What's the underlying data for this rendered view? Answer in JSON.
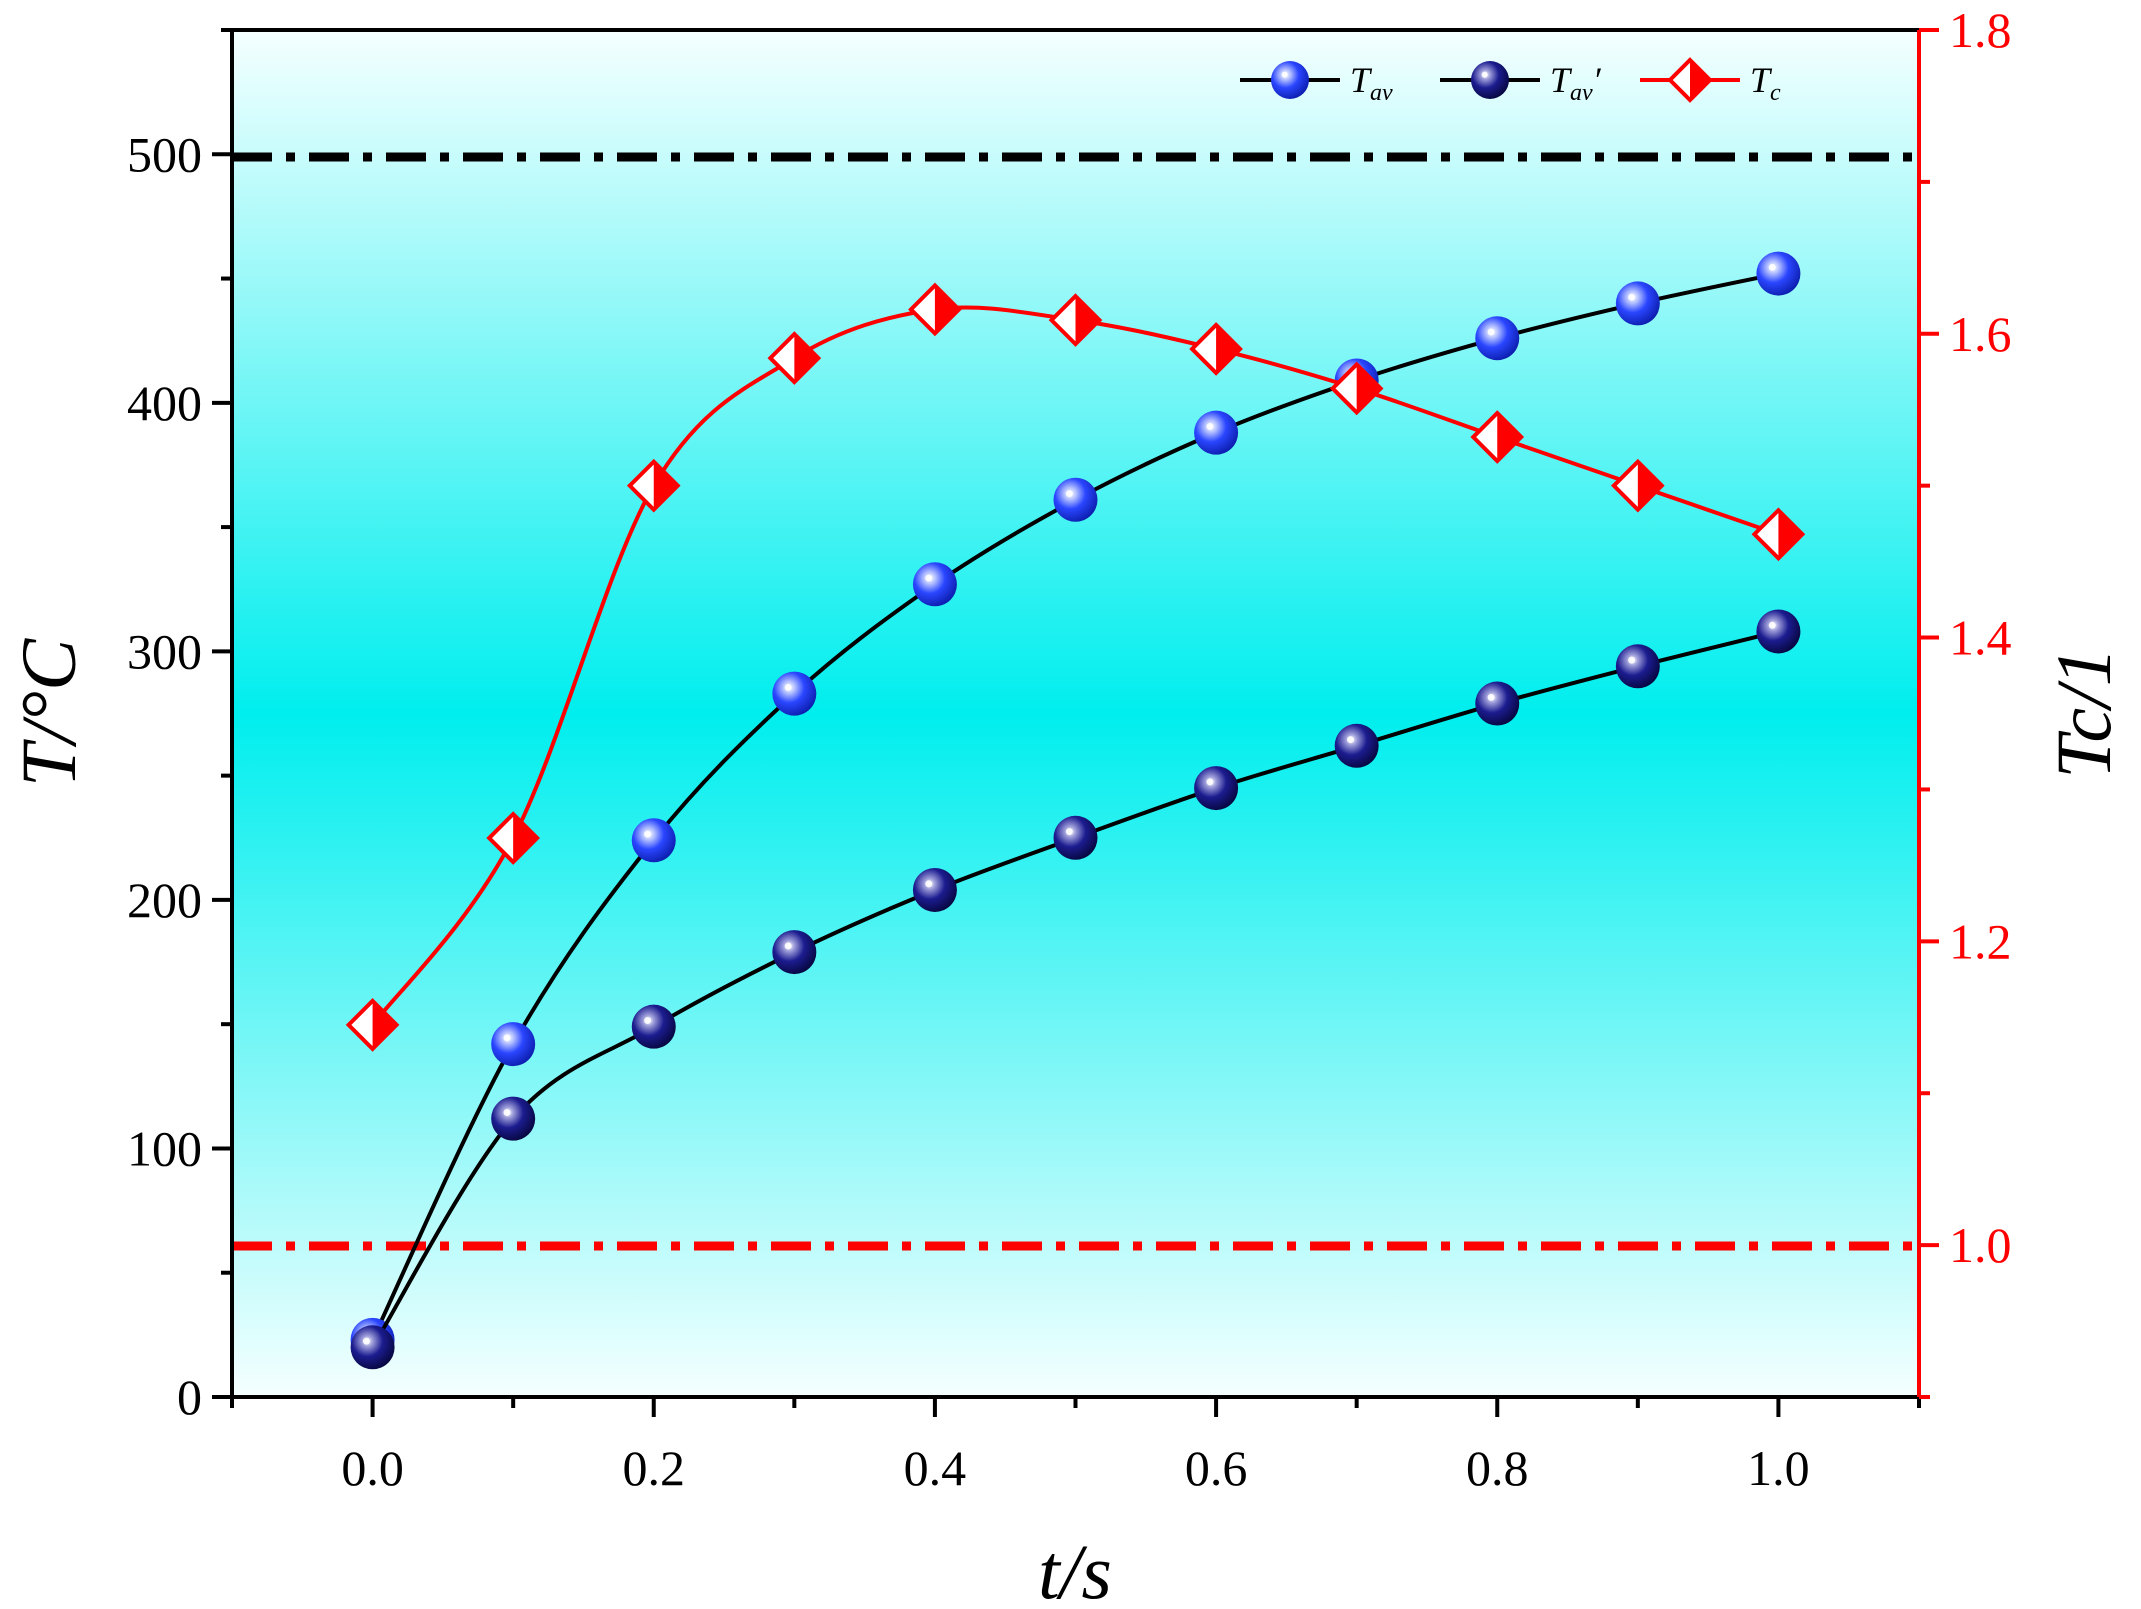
{
  "chart_data": {
    "type": "line",
    "x": [
      0.0,
      0.1,
      0.2,
      0.3,
      0.4,
      0.5,
      0.6,
      0.7,
      0.8,
      0.9,
      1.0
    ],
    "xlabel": "t/s",
    "xlim": [
      -0.1,
      1.1
    ],
    "xticks": [
      "0.0",
      "0.2",
      "0.4",
      "0.6",
      "0.8",
      "1.0"
    ],
    "ylabel_left": "T/°C",
    "ylim_left": [
      0,
      550
    ],
    "yticks_left": [
      "0",
      "100",
      "200",
      "300",
      "400",
      "500"
    ],
    "ylabel_right": "Tc/1",
    "ylim_right": [
      0.9,
      1.8
    ],
    "yticks_right": [
      "1.0",
      "1.2",
      "1.4",
      "1.6",
      "1.8"
    ],
    "series": [
      {
        "name": "Tav",
        "axis": "left",
        "color": "#000000",
        "marker": "blue-sphere",
        "marker_color": "#1f3cff",
        "values": [
          23,
          142,
          224,
          283,
          327,
          361,
          388,
          409,
          426,
          440,
          452
        ]
      },
      {
        "name": "Tav'",
        "axis": "left",
        "color": "#000000",
        "marker": "navy-sphere",
        "marker_color": "#14147a",
        "values": [
          20,
          112,
          149,
          179,
          204,
          225,
          245,
          262,
          279,
          294,
          308
        ]
      },
      {
        "name": "Tc",
        "axis": "right",
        "color": "#ff0000",
        "marker": "half-filled-diamond",
        "marker_color": "#ff0000",
        "values": [
          1.145,
          1.268,
          1.5,
          1.584,
          1.616,
          1.609,
          1.59,
          1.564,
          1.532,
          1.5,
          1.468
        ]
      }
    ],
    "reference_lines": [
      {
        "axis": "left",
        "value": 500,
        "style": "dash-dot",
        "color": "#000000"
      },
      {
        "axis": "right",
        "value": 1.0,
        "style": "dash-dot",
        "color": "#ff0000"
      }
    ],
    "legend": {
      "placement": "top-right",
      "entries": [
        {
          "base": "T",
          "sub": "av",
          "suffix": ""
        },
        {
          "base": "T",
          "sub": "av",
          "suffix": "′"
        },
        {
          "base": "T",
          "sub": "c",
          "suffix": ""
        }
      ]
    },
    "background": {
      "type": "vertical-gradient",
      "edge_color": "#f5ffff",
      "center_color": "#00eeee"
    },
    "grid": false
  }
}
